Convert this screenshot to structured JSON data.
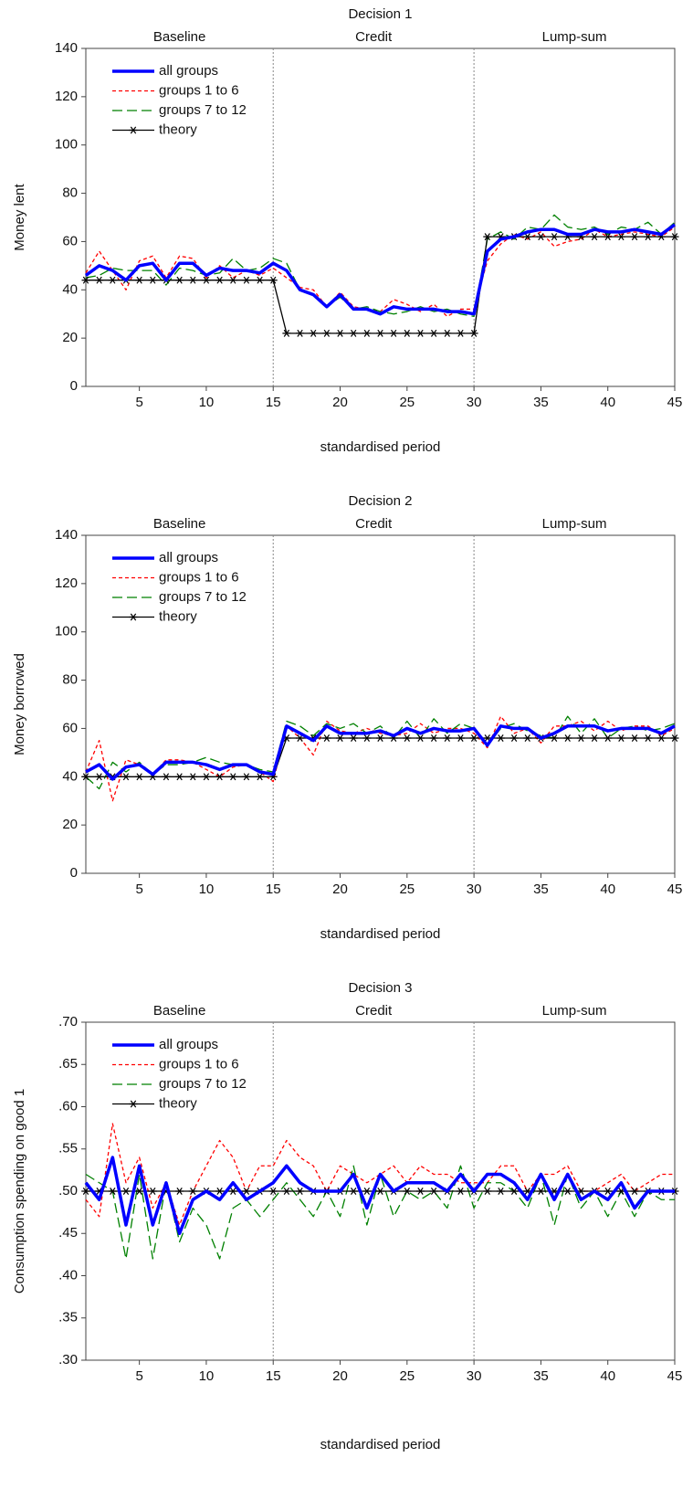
{
  "chart_data": [
    {
      "type": "line",
      "title": "Decision 1",
      "y_label": "Money lent",
      "x_label": "standardised period",
      "sections": [
        "Baseline",
        "Credit",
        "Lump-sum"
      ],
      "dividers": [
        15,
        30
      ],
      "legend": "upper left",
      "xlim": [
        1,
        45
      ],
      "xticks": [
        5,
        10,
        15,
        20,
        25,
        30,
        35,
        40,
        45
      ],
      "ylim": [
        0,
        140
      ],
      "yticks": [
        0,
        20,
        40,
        60,
        80,
        100,
        120,
        140
      ],
      "x": [
        1,
        2,
        3,
        4,
        5,
        6,
        7,
        8,
        9,
        10,
        11,
        12,
        13,
        14,
        15,
        16,
        17,
        18,
        19,
        20,
        21,
        22,
        23,
        24,
        25,
        26,
        27,
        28,
        29,
        30,
        31,
        32,
        33,
        34,
        35,
        36,
        37,
        38,
        39,
        40,
        41,
        42,
        43,
        44,
        45
      ],
      "series": [
        {
          "name": "all groups",
          "color": "#0000ff",
          "dash": "solid",
          "line_width": 3.5,
          "values": [
            46,
            50,
            48,
            44,
            50,
            51,
            44,
            51,
            51,
            46,
            49,
            48,
            48,
            47,
            51,
            48,
            40,
            38,
            33,
            38,
            32,
            32,
            30,
            33,
            32,
            32,
            32,
            31,
            31,
            30,
            56,
            61,
            62,
            64,
            65,
            65,
            63,
            63,
            65,
            64,
            64,
            65,
            64,
            63,
            67
          ]
        },
        {
          "name": "groups 1 to 6",
          "color": "#ff0000",
          "dash": "short",
          "line_width": 1.3,
          "values": [
            47,
            56,
            48,
            40,
            52,
            54,
            45,
            54,
            53,
            45,
            50,
            45,
            48,
            46,
            49,
            45,
            41,
            40,
            33,
            39,
            33,
            32,
            31,
            36,
            34,
            31,
            34,
            29,
            32,
            32,
            52,
            59,
            63,
            61,
            64,
            58,
            60,
            61,
            65,
            62,
            63,
            64,
            63,
            62,
            66
          ]
        },
        {
          "name": "groups 7 to 12",
          "color": "#008000",
          "dash": "long",
          "line_width": 1.3,
          "values": [
            45,
            46,
            49,
            48,
            48,
            48,
            42,
            49,
            48,
            46,
            47,
            53,
            48,
            49,
            53,
            51,
            40,
            38,
            33,
            37,
            32,
            33,
            31,
            30,
            31,
            33,
            31,
            32,
            30,
            29,
            61,
            64,
            61,
            66,
            65,
            71,
            66,
            65,
            66,
            63,
            66,
            65,
            68,
            63,
            68
          ]
        },
        {
          "name": "theory",
          "color": "#000000",
          "dash": "solid",
          "line_width": 1.3,
          "marker": "star",
          "values": [
            44,
            44,
            44,
            44,
            44,
            44,
            44,
            44,
            44,
            44,
            44,
            44,
            44,
            44,
            44,
            22,
            22,
            22,
            22,
            22,
            22,
            22,
            22,
            22,
            22,
            22,
            22,
            22,
            22,
            22,
            62,
            62,
            62,
            62,
            62,
            62,
            62,
            62,
            62,
            62,
            62,
            62,
            62,
            62,
            62
          ]
        }
      ]
    },
    {
      "type": "line",
      "title": "Decision 2",
      "y_label": "Money borrowed",
      "x_label": "standardised period",
      "sections": [
        "Baseline",
        "Credit",
        "Lump-sum"
      ],
      "dividers": [
        15,
        30
      ],
      "legend": "upper left",
      "xlim": [
        1,
        45
      ],
      "xticks": [
        5,
        10,
        15,
        20,
        25,
        30,
        35,
        40,
        45
      ],
      "ylim": [
        0,
        140
      ],
      "yticks": [
        0,
        20,
        40,
        60,
        80,
        100,
        120,
        140
      ],
      "x": [
        1,
        2,
        3,
        4,
        5,
        6,
        7,
        8,
        9,
        10,
        11,
        12,
        13,
        14,
        15,
        16,
        17,
        18,
        19,
        20,
        21,
        22,
        23,
        24,
        25,
        26,
        27,
        28,
        29,
        30,
        31,
        32,
        33,
        34,
        35,
        36,
        37,
        38,
        39,
        40,
        41,
        42,
        43,
        44,
        45
      ],
      "series": [
        {
          "name": "all groups",
          "color": "#0000ff",
          "dash": "solid",
          "line_width": 3.5,
          "values": [
            42,
            45,
            39,
            44,
            45,
            41,
            46,
            46,
            46,
            45,
            43,
            45,
            45,
            42,
            41,
            61,
            58,
            55,
            61,
            58,
            58,
            58,
            59,
            57,
            60,
            58,
            60,
            59,
            59,
            60,
            53,
            61,
            60,
            60,
            56,
            58,
            61,
            61,
            61,
            59,
            60,
            60,
            60,
            58,
            61
          ]
        },
        {
          "name": "groups 1 to 6",
          "color": "#ff0000",
          "dash": "short",
          "line_width": 1.3,
          "values": [
            42,
            55,
            30,
            47,
            45,
            41,
            47,
            47,
            46,
            43,
            40,
            44,
            45,
            42,
            38,
            61,
            56,
            49,
            63,
            59,
            58,
            60,
            58,
            57,
            58,
            62,
            58,
            60,
            60,
            58,
            52,
            65,
            58,
            60,
            54,
            61,
            61,
            63,
            59,
            63,
            59,
            61,
            61,
            57,
            60
          ]
        },
        {
          "name": "groups 7 to 12",
          "color": "#008000",
          "dash": "long",
          "line_width": 1.3,
          "values": [
            40,
            35,
            46,
            42,
            46,
            41,
            45,
            45,
            46,
            48,
            46,
            45,
            45,
            43,
            42,
            63,
            61,
            57,
            62,
            60,
            62,
            58,
            61,
            56,
            63,
            56,
            64,
            58,
            62,
            60,
            53,
            60,
            62,
            59,
            57,
            56,
            65,
            58,
            64,
            56,
            60,
            61,
            59,
            60,
            62
          ]
        },
        {
          "name": "theory",
          "color": "#000000",
          "dash": "solid",
          "line_width": 1.3,
          "marker": "star",
          "values": [
            40,
            40,
            40,
            40,
            40,
            40,
            40,
            40,
            40,
            40,
            40,
            40,
            40,
            40,
            40,
            56,
            56,
            56,
            56,
            56,
            56,
            56,
            56,
            56,
            56,
            56,
            56,
            56,
            56,
            56,
            56,
            56,
            56,
            56,
            56,
            56,
            56,
            56,
            56,
            56,
            56,
            56,
            56,
            56,
            56
          ]
        }
      ]
    },
    {
      "type": "line",
      "title": "Decision 3",
      "y_label": "Consumption spending on good 1",
      "x_label": "standardised period",
      "sections": [
        "Baseline",
        "Credit",
        "Lump-sum"
      ],
      "dividers": [
        15,
        30
      ],
      "legend": "upper left",
      "xlim": [
        1,
        45
      ],
      "xticks": [
        5,
        10,
        15,
        20,
        25,
        30,
        35,
        40,
        45
      ],
      "ylim": [
        0.3,
        0.7
      ],
      "yticks": [
        {
          "value": 0.3,
          "label": ".30"
        },
        {
          "value": 0.35,
          "label": ".35"
        },
        {
          "value": 0.4,
          "label": ".40"
        },
        {
          "value": 0.45,
          "label": ".45"
        },
        {
          "value": 0.5,
          "label": ".50"
        },
        {
          "value": 0.55,
          "label": ".55"
        },
        {
          "value": 0.6,
          "label": ".60"
        },
        {
          "value": 0.65,
          "label": ".65"
        },
        {
          "value": 0.7,
          "label": ".70"
        }
      ],
      "x": [
        1,
        2,
        3,
        4,
        5,
        6,
        7,
        8,
        9,
        10,
        11,
        12,
        13,
        14,
        15,
        16,
        17,
        18,
        19,
        20,
        21,
        22,
        23,
        24,
        25,
        26,
        27,
        28,
        29,
        30,
        31,
        32,
        33,
        34,
        35,
        36,
        37,
        38,
        39,
        40,
        41,
        42,
        43,
        44,
        45
      ],
      "series": [
        {
          "name": "all groups",
          "color": "#0000ff",
          "dash": "solid",
          "line_width": 3.5,
          "values": [
            0.51,
            0.49,
            0.54,
            0.46,
            0.53,
            0.46,
            0.51,
            0.45,
            0.49,
            0.5,
            0.49,
            0.51,
            0.49,
            0.5,
            0.51,
            0.53,
            0.51,
            0.5,
            0.5,
            0.5,
            0.52,
            0.48,
            0.52,
            0.5,
            0.51,
            0.51,
            0.51,
            0.5,
            0.52,
            0.5,
            0.52,
            0.52,
            0.51,
            0.49,
            0.52,
            0.49,
            0.52,
            0.49,
            0.5,
            0.49,
            0.51,
            0.48,
            0.5,
            0.5,
            0.5
          ]
        },
        {
          "name": "groups 1 to 6",
          "color": "#ff0000",
          "dash": "short",
          "line_width": 1.3,
          "values": [
            0.49,
            0.47,
            0.58,
            0.51,
            0.54,
            0.48,
            0.51,
            0.46,
            0.5,
            0.53,
            0.56,
            0.54,
            0.5,
            0.53,
            0.53,
            0.56,
            0.54,
            0.53,
            0.5,
            0.53,
            0.52,
            0.51,
            0.52,
            0.53,
            0.51,
            0.53,
            0.52,
            0.52,
            0.51,
            0.51,
            0.51,
            0.53,
            0.53,
            0.5,
            0.52,
            0.52,
            0.53,
            0.5,
            0.5,
            0.51,
            0.52,
            0.5,
            0.51,
            0.52,
            0.52
          ]
        },
        {
          "name": "groups 7 to 12",
          "color": "#008000",
          "dash": "long",
          "line_width": 1.3,
          "values": [
            0.52,
            0.51,
            0.5,
            0.42,
            0.52,
            0.42,
            0.51,
            0.44,
            0.48,
            0.46,
            0.42,
            0.48,
            0.49,
            0.47,
            0.49,
            0.51,
            0.49,
            0.47,
            0.5,
            0.47,
            0.53,
            0.46,
            0.52,
            0.47,
            0.5,
            0.49,
            0.5,
            0.48,
            0.53,
            0.48,
            0.51,
            0.51,
            0.5,
            0.48,
            0.52,
            0.46,
            0.52,
            0.48,
            0.5,
            0.47,
            0.5,
            0.47,
            0.5,
            0.49,
            0.49
          ]
        },
        {
          "name": "theory",
          "color": "#000000",
          "dash": "solid",
          "line_width": 1.3,
          "marker": "star",
          "values": [
            0.5,
            0.5,
            0.5,
            0.5,
            0.5,
            0.5,
            0.5,
            0.5,
            0.5,
            0.5,
            0.5,
            0.5,
            0.5,
            0.5,
            0.5,
            0.5,
            0.5,
            0.5,
            0.5,
            0.5,
            0.5,
            0.5,
            0.5,
            0.5,
            0.5,
            0.5,
            0.5,
            0.5,
            0.5,
            0.5,
            0.5,
            0.5,
            0.5,
            0.5,
            0.5,
            0.5,
            0.5,
            0.5,
            0.5,
            0.5,
            0.5,
            0.5,
            0.5,
            0.5,
            0.5
          ]
        }
      ]
    }
  ]
}
